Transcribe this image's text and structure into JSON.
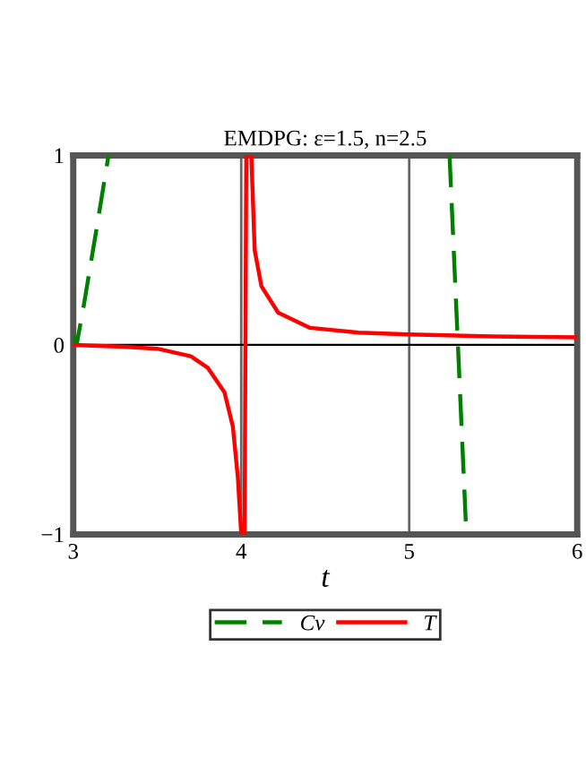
{
  "chart_data": {
    "type": "line",
    "title": "EMDPG: ε=1.5, n=2.5",
    "xlabel": "t",
    "xlim": [
      3,
      6
    ],
    "xticks": [
      3,
      4,
      5,
      6
    ],
    "ylim": [
      -1,
      1
    ],
    "yticks": [
      -1,
      0,
      1
    ],
    "grid": "x",
    "legend": "bottom",
    "marker": "none",
    "ref_lines": [
      {
        "axis": "y",
        "value": 0,
        "color": "#000000"
      }
    ],
    "series": [
      {
        "name": "Cv",
        "color": "#008000",
        "line_style": "dashed",
        "x": [
          3.0,
          3.02,
          3.065,
          3.14,
          3.21,
          null,
          5.24,
          5.34
        ],
        "values": [
          0.05,
          0.0,
          0.22,
          0.62,
          1.0,
          null,
          1.0,
          -1.0
        ]
      },
      {
        "name": "T",
        "color": "#ff0000",
        "line_style": "solid",
        "x": [
          3.0,
          3.3,
          3.5,
          3.7,
          3.8,
          3.9,
          3.95,
          3.98,
          4.0,
          4.02,
          4.03,
          4.06,
          4.08,
          4.12,
          4.22,
          4.41,
          4.7,
          5.0,
          5.5,
          6.0
        ],
        "values": [
          0.0,
          -0.01,
          -0.02,
          -0.06,
          -0.12,
          -0.25,
          -0.43,
          -0.7,
          -1.0,
          -1.0,
          1.0,
          1.0,
          0.5,
          0.31,
          0.17,
          0.09,
          0.065,
          0.055,
          0.045,
          0.04
        ]
      }
    ]
  }
}
